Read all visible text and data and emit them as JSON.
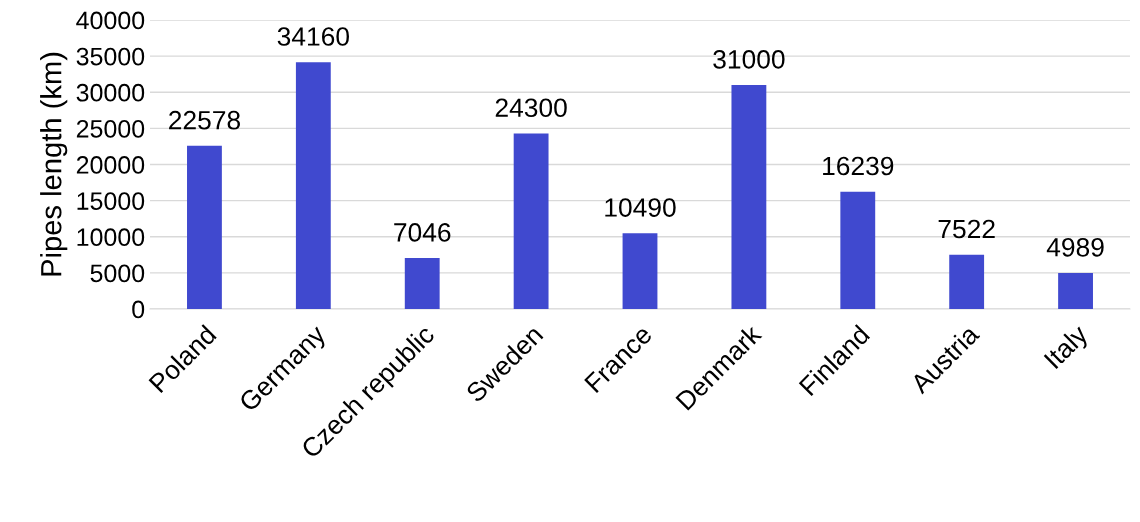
{
  "chart_data": {
    "type": "bar",
    "ylabel": "Pipes length (km)",
    "categories": [
      "Poland",
      "Germany",
      "Czech republic",
      "Sweden",
      "France",
      "Denmark",
      "Finland",
      "Austria",
      "Italy"
    ],
    "values": [
      22578,
      34160,
      7046,
      24300,
      10490,
      31000,
      16239,
      7522,
      4989
    ],
    "color": "#4049cf",
    "ylim": [
      0,
      40000
    ],
    "yticks": [
      0,
      5000,
      10000,
      15000,
      20000,
      25000,
      30000,
      35000,
      40000
    ],
    "grid": "y",
    "data_labels": true
  }
}
